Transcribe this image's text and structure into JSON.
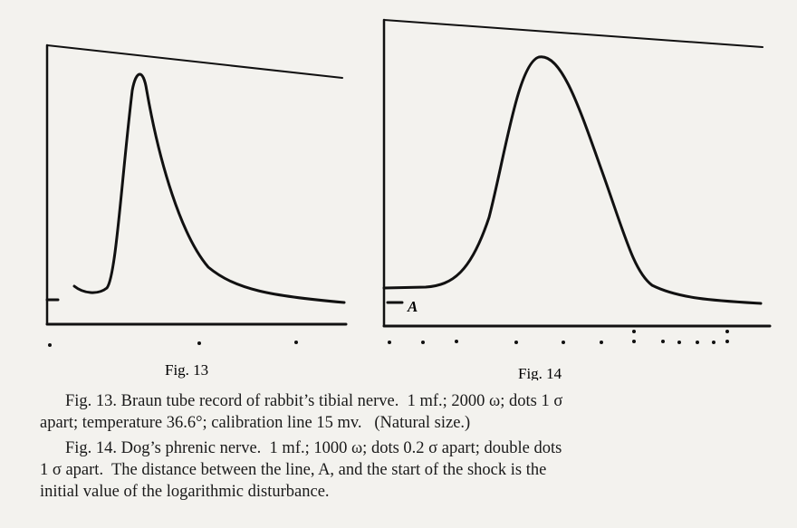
{
  "figures": [
    {
      "label": "Fig. 13"
    },
    {
      "label": "Fig. 14",
      "line_label": "A"
    }
  ],
  "captions": [
    {
      "lines": [
        "Fig. 13. Braun tube record of rabbit’s tibial nerve.  1 mf.; 2000 ω; dots 1 σ",
        "apart; temperature 36.6°; calibration line 15 mv.   (Natural size.)"
      ]
    },
    {
      "lines": [
        "Fig. 14. Dog’s phrenic nerve.  1 mf.; 1000 ω; dots 0.2 σ apart; double dots",
        "1 σ apart.  The distance between the line, A, and the start of the shock is the",
        "initial value of the logarithmic disturbance."
      ]
    }
  ]
}
